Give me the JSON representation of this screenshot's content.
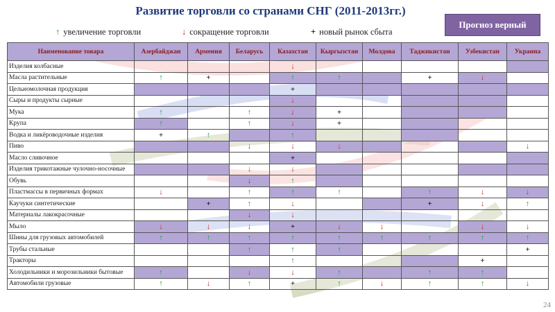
{
  "title": "Развитие торговли со странами СНГ  (2011-2013гг.)",
  "button": "Прогноз верный",
  "page_number": "24",
  "legend": [
    {
      "symbol": "↑",
      "text": "увеличение торговли",
      "color": "#1f9e3a"
    },
    {
      "symbol": "↓",
      "text": "сокращение торговли",
      "color": "#d62020"
    },
    {
      "symbol": "+",
      "text": "новый рынок сбыта",
      "color": "#111111"
    }
  ],
  "table": {
    "header": [
      "Наименование товара",
      "Азербайджан",
      "Армения",
      "Беларусь",
      "Казахстан",
      "Кыргызстан",
      "Молдова",
      "Таджикистан",
      "Узбекистан",
      "Украина"
    ],
    "shade_color": "#b4a7d6",
    "rows": [
      {
        "cells": [
          "Изделия колбасные",
          null,
          null,
          null,
          "↓",
          null,
          null,
          null,
          null,
          null
        ],
        "shade": [
          0,
          0,
          0,
          0,
          0,
          0,
          0,
          0,
          1
        ]
      },
      {
        "cells": [
          "Масла растительные",
          "↑",
          "+",
          null,
          "↑",
          "↑",
          null,
          "+",
          "↓",
          null
        ],
        "shade": [
          0,
          0,
          0,
          1,
          1,
          1,
          0,
          1,
          0
        ]
      },
      {
        "cells": [
          "Цельномолочная продукция",
          null,
          null,
          null,
          "+",
          null,
          null,
          null,
          null,
          null
        ],
        "shade": [
          1,
          1,
          1,
          0,
          1,
          1,
          1,
          1,
          1
        ]
      },
      {
        "cells": [
          "Сыры и продукты сырные",
          null,
          null,
          null,
          "↓",
          null,
          null,
          null,
          null,
          null
        ],
        "shade": [
          0,
          0,
          0,
          1,
          0,
          0,
          1,
          1,
          0
        ]
      },
      {
        "cells": [
          "Мука",
          "↑",
          null,
          "↑",
          "↓",
          "+",
          null,
          null,
          null,
          null
        ],
        "shade": [
          0,
          0,
          0,
          1,
          0,
          0,
          1,
          1,
          0
        ]
      },
      {
        "cells": [
          "Крупа",
          "↑",
          null,
          "↑",
          "↓",
          "+",
          null,
          null,
          null,
          null
        ],
        "shade": [
          1,
          0,
          0,
          1,
          0,
          0,
          1,
          0,
          0
        ]
      },
      {
        "cells": [
          "Водка и ликёроводочные изделия",
          "+",
          "↑",
          null,
          "↑",
          null,
          null,
          null,
          null,
          null
        ],
        "shade": [
          0,
          0,
          1,
          1,
          0,
          0,
          1,
          0,
          0
        ]
      },
      {
        "cells": [
          "Пиво",
          null,
          null,
          "↓",
          "↓",
          "↓",
          null,
          null,
          null,
          "↓"
        ],
        "shade": [
          1,
          1,
          0,
          0,
          1,
          1,
          0,
          1,
          0
        ]
      },
      {
        "cells": [
          "Масло сливочное",
          null,
          null,
          null,
          "+",
          null,
          null,
          null,
          null,
          null
        ],
        "shade": [
          0,
          0,
          0,
          1,
          0,
          0,
          0,
          0,
          1
        ]
      },
      {
        "cells": [
          "Изделия трикотажные чулочно-носочные",
          null,
          null,
          "↓",
          "↓",
          null,
          null,
          null,
          null,
          null
        ],
        "shade": [
          1,
          1,
          0,
          0,
          1,
          0,
          0,
          1,
          1
        ]
      },
      {
        "cells": [
          "Обувь",
          null,
          null,
          "↓",
          "↑",
          null,
          null,
          null,
          null,
          null
        ],
        "shade": [
          0,
          0,
          1,
          0,
          1,
          0,
          0,
          0,
          0
        ]
      },
      {
        "cells": [
          "Пластмассы в первичных формах",
          "↓",
          null,
          "↑",
          "↑",
          "↑",
          null,
          "↑",
          "↓",
          "↓"
        ],
        "shade": [
          0,
          0,
          0,
          1,
          0,
          0,
          1,
          0,
          1
        ]
      },
      {
        "cells": [
          "Каучуки синтетические",
          null,
          "+",
          "↑",
          "↓",
          null,
          null,
          "+",
          "↓",
          "↑"
        ],
        "shade": [
          0,
          1,
          0,
          0,
          0,
          1,
          1,
          0,
          0
        ]
      },
      {
        "cells": [
          "Материалы лакокрасочные",
          null,
          null,
          "↓",
          "↓",
          null,
          null,
          null,
          null,
          null
        ],
        "shade": [
          0,
          0,
          1,
          0,
          0,
          0,
          0,
          0,
          0
        ]
      },
      {
        "cells": [
          "Мыло",
          "↓",
          "↓",
          "↓",
          "+",
          "↓",
          "↓",
          null,
          "↓",
          "↓"
        ],
        "shade": [
          1,
          0,
          0,
          1,
          1,
          0,
          0,
          1,
          0
        ]
      },
      {
        "cells": [
          "Шины для грузовых автомобилей",
          "↑",
          "↑",
          "↑",
          "↑",
          "↑",
          "↑",
          "↑",
          "↑",
          "↑"
        ],
        "shade": [
          1,
          1,
          1,
          1,
          1,
          1,
          1,
          1,
          1
        ]
      },
      {
        "cells": [
          "Трубы стальные",
          null,
          null,
          "↑",
          "↑",
          "↑",
          null,
          null,
          null,
          "+"
        ],
        "shade": [
          0,
          0,
          1,
          0,
          1,
          0,
          0,
          0,
          0
        ]
      },
      {
        "cells": [
          "Тракторы",
          null,
          null,
          null,
          "↑",
          null,
          null,
          null,
          "+",
          null
        ],
        "shade": [
          0,
          0,
          0,
          0,
          0,
          0,
          1,
          0,
          0
        ]
      },
      {
        "cells": [
          "Холодильники и морозильники бытовые",
          "↑",
          null,
          "↓",
          "↓",
          "↑",
          null,
          "↑",
          "↑",
          null
        ],
        "shade": [
          1,
          0,
          1,
          0,
          1,
          1,
          1,
          1,
          0
        ]
      },
      {
        "cells": [
          "Автомобили грузовые",
          "↑",
          "↓",
          "↑",
          "+",
          "↑",
          "↓",
          "↑",
          "↑",
          "↓"
        ],
        "shade": [
          0,
          0,
          0,
          0,
          0,
          0,
          0,
          0,
          0
        ]
      }
    ]
  }
}
